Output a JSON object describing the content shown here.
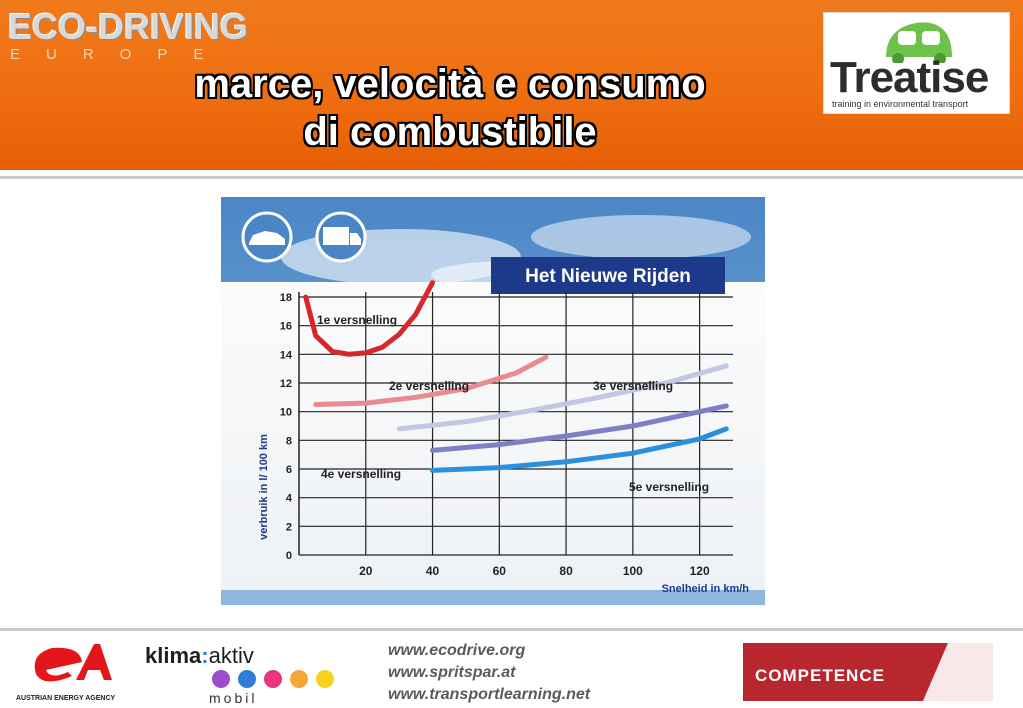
{
  "header": {
    "brand": "ECO-DRIVING",
    "brand_sub": "EUROPE",
    "title_line1": "marce, velocità e consumo",
    "title_line2": "di combustibile"
  },
  "treatise": {
    "word": "Treatise",
    "tagline": "training in environmental transport"
  },
  "chart_data": {
    "type": "line",
    "title": "Het Nieuwe Rijden",
    "xlabel": "Snelheid in km/h",
    "ylabel": "verbruik in l/ 100 km",
    "x_ticks": [
      20,
      40,
      60,
      80,
      100,
      120
    ],
    "y_ticks": [
      0,
      2,
      4,
      6,
      8,
      10,
      12,
      14,
      16,
      18
    ],
    "xlim": [
      0,
      130
    ],
    "ylim": [
      0,
      18
    ],
    "grid": true,
    "series": [
      {
        "name": "1e versnelling",
        "color": "#d8262c",
        "x": [
          2,
          5,
          10,
          15,
          20,
          25,
          30,
          35,
          40
        ],
        "y": [
          18,
          15.3,
          14.2,
          14.0,
          14.1,
          14.5,
          15.4,
          16.8,
          19
        ]
      },
      {
        "name": "2e versnelling",
        "color": "#e98b8e",
        "x": [
          5,
          20,
          35,
          50,
          65,
          74
        ],
        "y": [
          10.5,
          10.6,
          11.0,
          11.6,
          12.7,
          13.8
        ]
      },
      {
        "name": "3e versnelling",
        "color": "#c3c6e6",
        "x": [
          30,
          50,
          70,
          90,
          110,
          128
        ],
        "y": [
          8.8,
          9.3,
          10.1,
          11.0,
          12.0,
          13.2
        ]
      },
      {
        "name": "4e versnelling",
        "color": "#7f7fc6",
        "x": [
          40,
          60,
          80,
          100,
          120,
          128
        ],
        "y": [
          7.3,
          7.7,
          8.3,
          9.0,
          10.0,
          10.4
        ]
      },
      {
        "name": "5e versnelling",
        "color": "#2a8fdc",
        "x": [
          40,
          60,
          80,
          100,
          120,
          128
        ],
        "y": [
          5.9,
          6.1,
          6.5,
          7.1,
          8.1,
          8.8
        ]
      }
    ]
  },
  "footer": {
    "links": [
      "www.ecodrive.org",
      "www.spritspar.at",
      "www.transportlearning.net"
    ],
    "agency": "AUSTRIAN ENERGY AGENCY",
    "klima_bold": "klima",
    "klima_light": "aktiv",
    "mobil": "mobil",
    "competence": "COMPETENCE",
    "dot_colors": [
      "#9a4fc9",
      "#2f7fd8",
      "#e8357c",
      "#f7a63a",
      "#f5d21c"
    ]
  }
}
